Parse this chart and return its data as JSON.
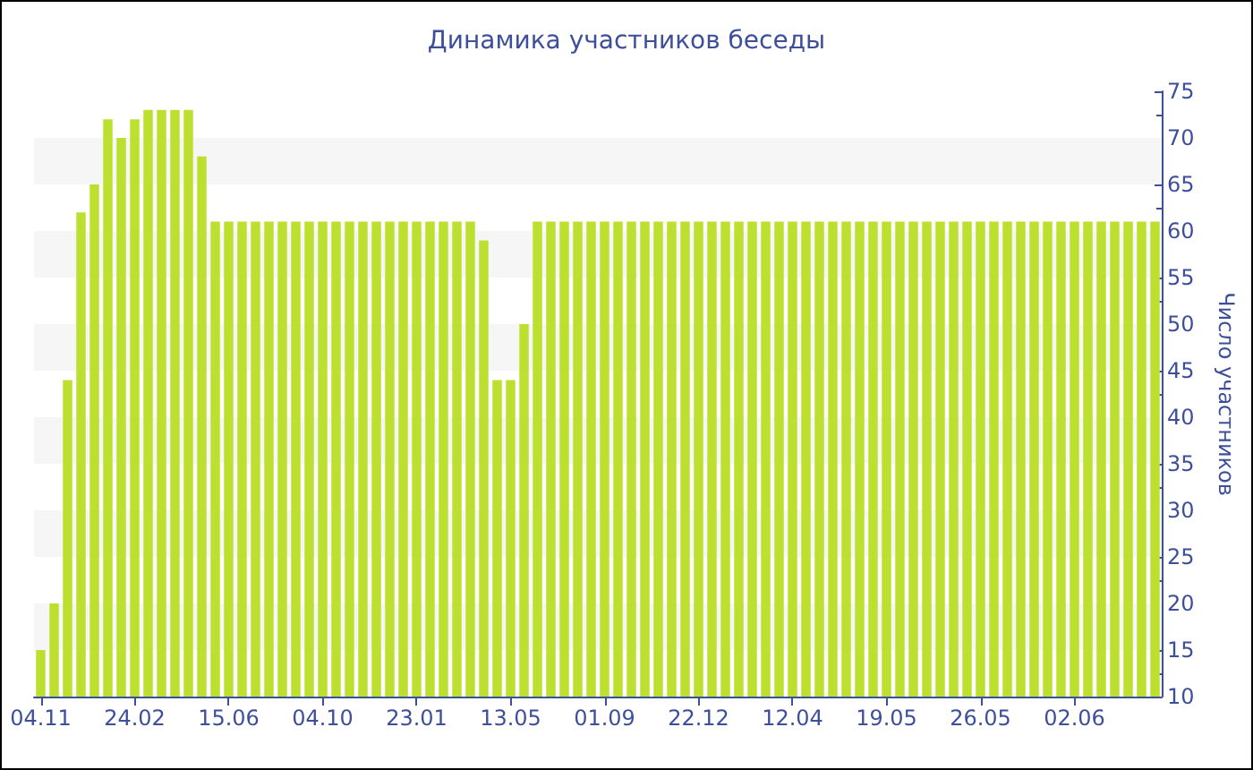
{
  "chart_data": {
    "type": "bar",
    "title": "Динамика участников беседы",
    "ylabel": "Число участников",
    "categories": [
      "04.11",
      null,
      null,
      null,
      null,
      null,
      null,
      "24.02",
      null,
      null,
      null,
      null,
      null,
      null,
      "15.06",
      null,
      null,
      null,
      null,
      null,
      null,
      "04.10",
      null,
      null,
      null,
      null,
      null,
      null,
      "23.01",
      null,
      null,
      null,
      null,
      null,
      null,
      "13.05",
      null,
      null,
      null,
      null,
      null,
      null,
      "01.09",
      null,
      null,
      null,
      null,
      null,
      null,
      "22.12",
      null,
      null,
      null,
      null,
      null,
      null,
      "12.04",
      null,
      null,
      null,
      null,
      null,
      null,
      "19.05",
      null,
      null,
      null,
      null,
      null,
      null,
      "26.05",
      null,
      null,
      null,
      null,
      null,
      null,
      "02.06",
      null,
      null,
      null,
      null,
      null,
      null
    ],
    "values": [
      15,
      20,
      44,
      62,
      65,
      72,
      70,
      72,
      73,
      73,
      73,
      73,
      68,
      61,
      61,
      61,
      61,
      61,
      61,
      61,
      61,
      61,
      61,
      61,
      61,
      61,
      61,
      61,
      61,
      61,
      61,
      61,
      61,
      59,
      44,
      44,
      50,
      61,
      61,
      61,
      61,
      61,
      61,
      61,
      61,
      61,
      61,
      61,
      61,
      61,
      61,
      61,
      61,
      61,
      61,
      61,
      61,
      61,
      61,
      61,
      61,
      61,
      61,
      61,
      61,
      61,
      61,
      61,
      61,
      61,
      61,
      61,
      61,
      61,
      61,
      61,
      61,
      61,
      61,
      61,
      61,
      61,
      61,
      61
    ],
    "color": "#bde030",
    "ylim": [
      10,
      75
    ],
    "yticks": [
      10,
      15,
      20,
      25,
      30,
      35,
      40,
      45,
      50,
      55,
      60,
      65,
      70,
      75
    ],
    "bands": [
      {
        "axis": "y",
        "from": 15,
        "to": 20,
        "color": "#f6f6f6"
      },
      {
        "axis": "y",
        "from": 25,
        "to": 30,
        "color": "#f6f6f6"
      },
      {
        "axis": "y",
        "from": 35,
        "to": 40,
        "color": "#f6f6f6"
      },
      {
        "axis": "y",
        "from": 45,
        "to": 50,
        "color": "#f6f6f6"
      },
      {
        "axis": "y",
        "from": 55,
        "to": 60,
        "color": "#f6f6f6"
      },
      {
        "axis": "y",
        "from": 65,
        "to": 70,
        "color": "#f6f6f6"
      }
    ]
  }
}
